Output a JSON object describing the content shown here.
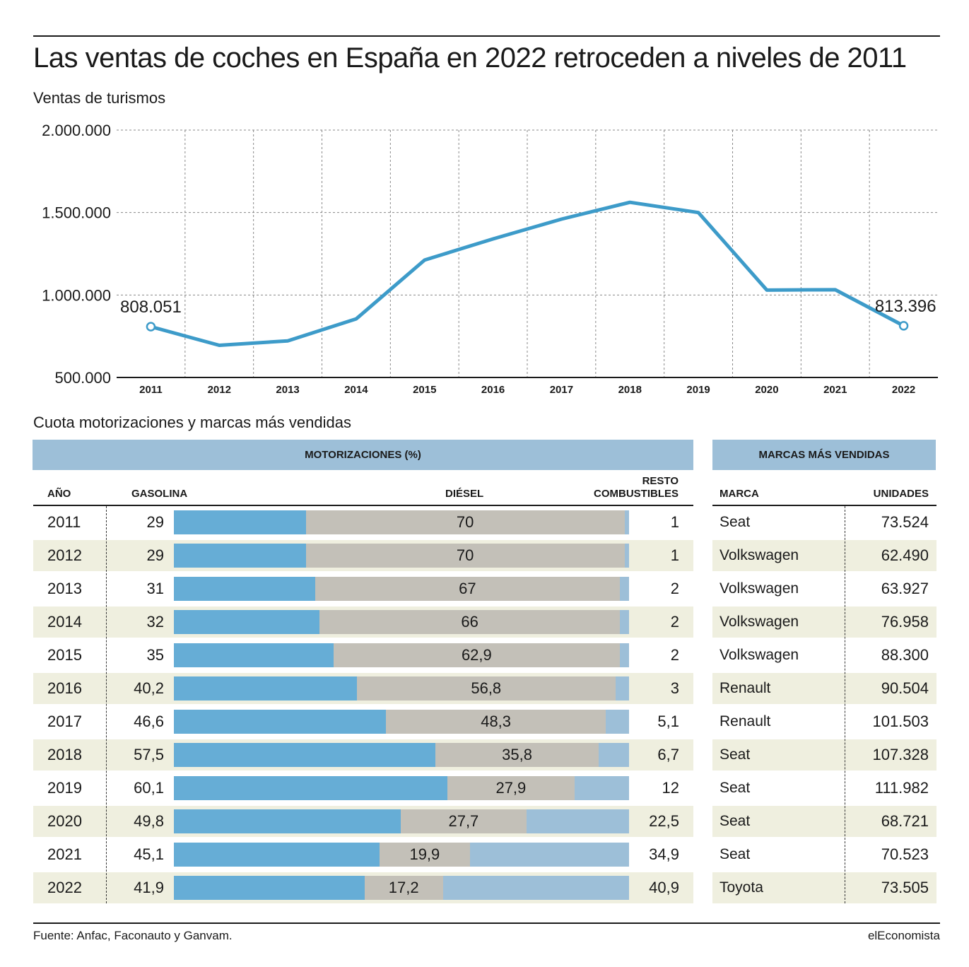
{
  "title": "Las ventas de coches en España en 2022 retroceden a niveles de 2011",
  "subtitle": "Ventas de turismos",
  "chart_data": {
    "type": "line",
    "x": [
      "2011",
      "2012",
      "2013",
      "2014",
      "2015",
      "2016",
      "2017",
      "2018",
      "2019",
      "2020",
      "2021",
      "2022"
    ],
    "values": [
      808051,
      695000,
      722000,
      855000,
      1212000,
      1340000,
      1460000,
      1562000,
      1500000,
      1030000,
      1032000,
      813396
    ],
    "ylim": [
      500000,
      2000000
    ],
    "yticks": [
      500000,
      1000000,
      1500000,
      2000000
    ],
    "ytick_labels": [
      "500.000",
      "1.000.000",
      "1.500.000",
      "2.000.000"
    ],
    "annotations": [
      {
        "x": "2011",
        "label": "808.051"
      },
      {
        "x": "2022",
        "label": "813.396"
      }
    ],
    "grid": true,
    "line_color": "#3d9bc9"
  },
  "section_title": "Cuota motorizaciones y marcas más vendidas",
  "motor_table": {
    "band": "MOTORIZACIONES (%)",
    "col_year": "AÑO",
    "col_gas": "GASOLINA",
    "col_diesel": "DIÉSEL",
    "col_rest_line1": "RESTO",
    "col_rest_line2": "COMBUSTIBLES",
    "colors": {
      "gasolina": "#66add6",
      "diesel": "#c3c0b8",
      "resto": "#9dbfd8",
      "alt_row": "#efefdf"
    },
    "rows": [
      {
        "year": "2011",
        "gas": 29,
        "gas_label": "29",
        "diesel": 70,
        "diesel_label": "70",
        "rest": 1,
        "rest_label": "1"
      },
      {
        "year": "2012",
        "gas": 29,
        "gas_label": "29",
        "diesel": 70,
        "diesel_label": "70",
        "rest": 1,
        "rest_label": "1"
      },
      {
        "year": "2013",
        "gas": 31,
        "gas_label": "31",
        "diesel": 67,
        "diesel_label": "67",
        "rest": 2,
        "rest_label": "2"
      },
      {
        "year": "2014",
        "gas": 32,
        "gas_label": "32",
        "diesel": 66,
        "diesel_label": "66",
        "rest": 2,
        "rest_label": "2"
      },
      {
        "year": "2015",
        "gas": 35,
        "gas_label": "35",
        "diesel": 62.9,
        "diesel_label": "62,9",
        "rest": 2,
        "rest_label": "2"
      },
      {
        "year": "2016",
        "gas": 40.2,
        "gas_label": "40,2",
        "diesel": 56.8,
        "diesel_label": "56,8",
        "rest": 3,
        "rest_label": "3"
      },
      {
        "year": "2017",
        "gas": 46.6,
        "gas_label": "46,6",
        "diesel": 48.3,
        "diesel_label": "48,3",
        "rest": 5.1,
        "rest_label": "5,1"
      },
      {
        "year": "2018",
        "gas": 57.5,
        "gas_label": "57,5",
        "diesel": 35.8,
        "diesel_label": "35,8",
        "rest": 6.7,
        "rest_label": "6,7"
      },
      {
        "year": "2019",
        "gas": 60.1,
        "gas_label": "60,1",
        "diesel": 27.9,
        "diesel_label": "27,9",
        "rest": 12,
        "rest_label": "12"
      },
      {
        "year": "2020",
        "gas": 49.8,
        "gas_label": "49,8",
        "diesel": 27.7,
        "diesel_label": "27,7",
        "rest": 22.5,
        "rest_label": "22,5"
      },
      {
        "year": "2021",
        "gas": 45.1,
        "gas_label": "45,1",
        "diesel": 19.9,
        "diesel_label": "19,9",
        "rest": 34.9,
        "rest_label": "34,9"
      },
      {
        "year": "2022",
        "gas": 41.9,
        "gas_label": "41,9",
        "diesel": 17.2,
        "diesel_label": "17,2",
        "rest": 40.9,
        "rest_label": "40,9"
      }
    ]
  },
  "brands_table": {
    "band": "MARCAS MÁS VENDIDAS",
    "col_brand": "MARCA",
    "col_units": "UNIDADES",
    "rows": [
      {
        "brand": "Seat",
        "units": "73.524"
      },
      {
        "brand": "Volkswagen",
        "units": "62.490"
      },
      {
        "brand": "Volkswagen",
        "units": "63.927"
      },
      {
        "brand": "Volkswagen",
        "units": "76.958"
      },
      {
        "brand": "Volkswagen",
        "units": "88.300"
      },
      {
        "brand": "Renault",
        "units": "90.504"
      },
      {
        "brand": "Renault",
        "units": "101.503"
      },
      {
        "brand": "Seat",
        "units": "107.328"
      },
      {
        "brand": "Seat",
        "units": "111.982"
      },
      {
        "brand": "Seat",
        "units": "68.721"
      },
      {
        "brand": "Seat",
        "units": "70.523"
      },
      {
        "brand": "Toyota",
        "units": "73.505"
      }
    ]
  },
  "footer": {
    "source": "Fuente: Anfac, Faconauto y Ganvam.",
    "brand": "elEconomista"
  }
}
